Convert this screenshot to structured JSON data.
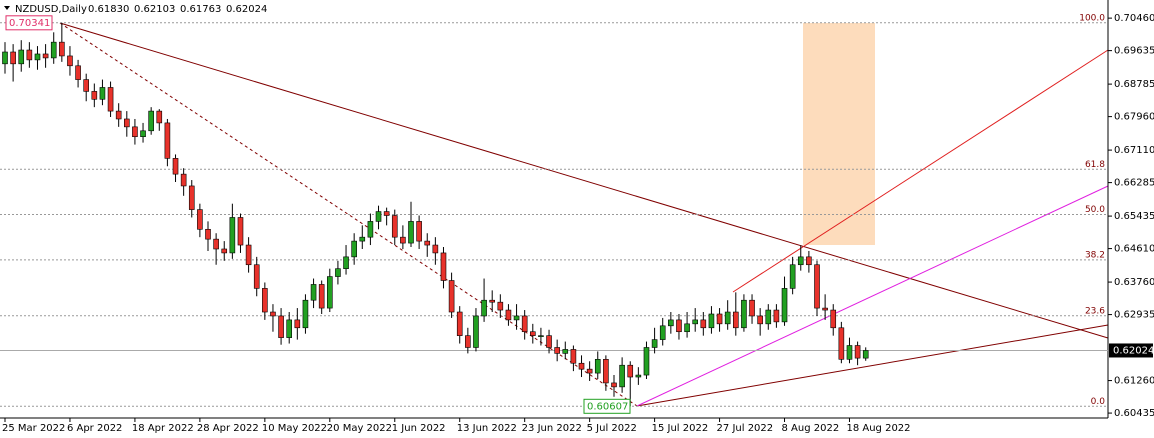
{
  "chart_data": {
    "type": "candlestick",
    "header_symbol": "NZDUSD,Daily",
    "header_values": [
      "0.61830",
      "0.62103",
      "0.61763",
      "0.62024"
    ],
    "categories": [
      "25 Mar 2022",
      null,
      null,
      null,
      null,
      null,
      null,
      null,
      "6 Apr 2022",
      null,
      null,
      null,
      null,
      null,
      null,
      null,
      "18 Apr 2022",
      null,
      null,
      null,
      null,
      null,
      null,
      null,
      "28 Apr 2022",
      null,
      null,
      null,
      null,
      null,
      null,
      null,
      "10 May 2022",
      null,
      null,
      null,
      null,
      null,
      null,
      null,
      "20 May 2022",
      null,
      null,
      null,
      null,
      null,
      null,
      null,
      "1 Jun 2022",
      null,
      null,
      null,
      null,
      null,
      null,
      null,
      "13 Jun 2022",
      null,
      null,
      null,
      null,
      null,
      null,
      null,
      "23 Jun 2022",
      null,
      null,
      null,
      null,
      null,
      null,
      null,
      "5 Jul 2022",
      null,
      null,
      null,
      null,
      null,
      null,
      null,
      "15 Jul 2022",
      null,
      null,
      null,
      null,
      null,
      null,
      null,
      "27 Jul 2022",
      null,
      null,
      null,
      null,
      null,
      null,
      null,
      "8 Aug 2022",
      null,
      null,
      null,
      null,
      null,
      null,
      null,
      "18 Aug 2022",
      null,
      null
    ],
    "open": [
      0.693,
      0.696,
      0.693,
      0.6965,
      0.694,
      0.6955,
      0.6945,
      0.6985,
      0.695,
      0.6925,
      0.689,
      0.686,
      0.684,
      0.687,
      0.681,
      0.679,
      0.677,
      0.6745,
      0.676,
      0.681,
      0.678,
      0.669,
      0.665,
      0.662,
      0.656,
      0.651,
      0.6485,
      0.646,
      0.645,
      0.654,
      0.647,
      0.642,
      0.636,
      0.63,
      0.629,
      0.6235,
      0.628,
      0.626,
      0.633,
      0.637,
      0.631,
      0.639,
      0.641,
      0.644,
      0.648,
      0.649,
      0.653,
      0.6555,
      0.6545,
      0.649,
      0.6475,
      0.653,
      0.648,
      0.647,
      0.645,
      0.638,
      0.63,
      0.624,
      0.621,
      0.629,
      0.633,
      0.6325,
      0.6305,
      0.628,
      0.629,
      0.625,
      0.624,
      0.624,
      0.621,
      0.6195,
      0.6205,
      0.617,
      0.6155,
      0.6145,
      0.618,
      0.612,
      0.611,
      0.6165,
      0.6135,
      0.614,
      0.621,
      0.623,
      0.6265,
      0.628,
      0.625,
      0.627,
      0.628,
      0.626,
      0.6295,
      0.627,
      0.63,
      0.626,
      0.633,
      0.629,
      0.627,
      0.6305,
      0.6275,
      0.636,
      0.642,
      0.644,
      0.642,
      0.631,
      0.6305,
      0.626,
      0.618,
      0.6215,
      0.6183
    ],
    "high": [
      0.6985,
      0.698,
      0.699,
      0.6985,
      0.6975,
      0.698,
      0.701,
      0.70341,
      0.6975,
      0.694,
      0.6905,
      0.688,
      0.689,
      0.6885,
      0.683,
      0.681,
      0.679,
      0.678,
      0.682,
      0.6815,
      0.679,
      0.67,
      0.6665,
      0.6635,
      0.6575,
      0.653,
      0.65,
      0.648,
      0.6575,
      0.655,
      0.649,
      0.644,
      0.6375,
      0.632,
      0.631,
      0.63,
      0.631,
      0.6345,
      0.6385,
      0.638,
      0.641,
      0.643,
      0.647,
      0.65,
      0.652,
      0.655,
      0.657,
      0.6565,
      0.656,
      0.652,
      0.658,
      0.6545,
      0.65,
      0.649,
      0.6465,
      0.64,
      0.6315,
      0.626,
      0.631,
      0.6385,
      0.6355,
      0.6345,
      0.632,
      0.632,
      0.6305,
      0.627,
      0.626,
      0.6255,
      0.623,
      0.6225,
      0.6215,
      0.619,
      0.6175,
      0.62,
      0.619,
      0.614,
      0.6185,
      0.6175,
      0.616,
      0.6225,
      0.626,
      0.6285,
      0.63,
      0.6295,
      0.63,
      0.631,
      0.63,
      0.6315,
      0.631,
      0.633,
      0.635,
      0.6345,
      0.6345,
      0.631,
      0.632,
      0.632,
      0.639,
      0.644,
      0.6469,
      0.6455,
      0.643,
      0.6345,
      0.632,
      0.6275,
      0.6235,
      0.6225,
      0.62103
    ],
    "low": [
      0.6905,
      0.6885,
      0.691,
      0.692,
      0.6915,
      0.692,
      0.693,
      0.6935,
      0.69,
      0.687,
      0.6835,
      0.682,
      0.6825,
      0.6795,
      0.677,
      0.6745,
      0.6725,
      0.673,
      0.675,
      0.676,
      0.667,
      0.663,
      0.6595,
      0.654,
      0.649,
      0.6455,
      0.642,
      0.643,
      0.6435,
      0.645,
      0.64,
      0.634,
      0.628,
      0.625,
      0.6217,
      0.622,
      0.623,
      0.6245,
      0.631,
      0.6295,
      0.63,
      0.637,
      0.6395,
      0.642,
      0.646,
      0.647,
      0.651,
      0.652,
      0.647,
      0.646,
      0.6465,
      0.646,
      0.644,
      0.642,
      0.636,
      0.6285,
      0.622,
      0.6195,
      0.62,
      0.6275,
      0.63,
      0.6285,
      0.6265,
      0.6255,
      0.623,
      0.622,
      0.6215,
      0.6195,
      0.6175,
      0.618,
      0.615,
      0.6135,
      0.6125,
      0.613,
      0.61,
      0.6085,
      0.6095,
      0.60607,
      0.6115,
      0.613,
      0.6195,
      0.6215,
      0.6245,
      0.623,
      0.6235,
      0.625,
      0.624,
      0.6245,
      0.625,
      0.6255,
      0.624,
      0.625,
      0.627,
      0.624,
      0.6255,
      0.626,
      0.6265,
      0.6345,
      0.6405,
      0.64,
      0.629,
      0.628,
      0.624,
      0.617,
      0.617,
      0.6165,
      0.61763
    ],
    "close": [
      0.696,
      0.693,
      0.6965,
      0.694,
      0.6955,
      0.6945,
      0.6985,
      0.695,
      0.6925,
      0.689,
      0.686,
      0.684,
      0.687,
      0.681,
      0.679,
      0.677,
      0.6745,
      0.676,
      0.681,
      0.678,
      0.669,
      0.665,
      0.662,
      0.656,
      0.651,
      0.6485,
      0.646,
      0.645,
      0.654,
      0.647,
      0.642,
      0.636,
      0.63,
      0.629,
      0.6235,
      0.628,
      0.626,
      0.633,
      0.637,
      0.631,
      0.639,
      0.641,
      0.644,
      0.648,
      0.649,
      0.653,
      0.6555,
      0.6545,
      0.649,
      0.6475,
      0.653,
      0.648,
      0.647,
      0.645,
      0.638,
      0.63,
      0.624,
      0.621,
      0.629,
      0.633,
      0.6325,
      0.6305,
      0.628,
      0.629,
      0.625,
      0.624,
      0.624,
      0.621,
      0.6195,
      0.6205,
      0.617,
      0.6155,
      0.6145,
      0.618,
      0.612,
      0.611,
      0.6165,
      0.6135,
      0.614,
      0.621,
      0.623,
      0.6265,
      0.628,
      0.625,
      0.627,
      0.628,
      0.626,
      0.6295,
      0.627,
      0.63,
      0.626,
      0.633,
      0.629,
      0.627,
      0.6305,
      0.6275,
      0.636,
      0.642,
      0.644,
      0.642,
      0.631,
      0.6305,
      0.626,
      0.618,
      0.6215,
      0.6183,
      0.62024
    ],
    "up_color": "#22a022",
    "down_color": "#e8322b",
    "ylim": [
      0.6031,
      0.7092
    ],
    "yticks": [
      {
        "value": 0.7046,
        "label": "0.70460"
      },
      0.69635,
      0.68785,
      {
        "value": 0.6796,
        "label": "0.67960"
      },
      {
        "value": 0.6711,
        "label": "0.67110"
      },
      0.66285,
      0.65435,
      {
        "value": 0.6461,
        "label": "0.64610"
      },
      {
        "value": 0.6376,
        "label": "0.63760"
      },
      0.62935,
      {
        "value": 0.6126,
        "label": "0.61260"
      },
      0.60435
    ],
    "current_price": 0.62024,
    "high_label": 0.70341,
    "low_label": 0.60607,
    "fib_levels": [
      {
        "level": {
          "value": 100,
          "label": "100.0"
        },
        "price": 0.70341
      },
      {
        "level": 61.8,
        "price": 0.66623
      },
      {
        "level": {
          "value": 50,
          "label": "50.0"
        },
        "price": 0.65474
      },
      {
        "level": 38.2,
        "price": 0.64325
      },
      {
        "level": 23.6,
        "price": 0.62904
      },
      {
        "level": {
          "value": 0,
          "label": "0.0"
        },
        "price": 0.60607
      }
    ]
  }
}
